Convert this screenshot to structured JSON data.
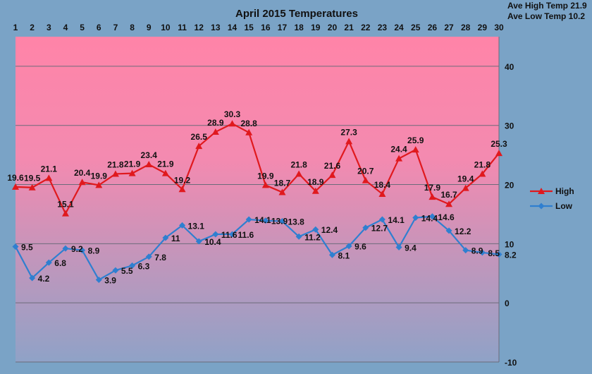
{
  "chart_data": {
    "type": "line",
    "title": "April 2015  Temperatures",
    "stats": [
      "Ave High Temp 21.9",
      "Ave Low Temp 10.2"
    ],
    "x": [
      1,
      2,
      3,
      4,
      5,
      6,
      7,
      8,
      9,
      10,
      11,
      12,
      13,
      14,
      15,
      16,
      17,
      18,
      19,
      20,
      21,
      22,
      23,
      24,
      25,
      26,
      27,
      28,
      29,
      30
    ],
    "x_ticks": [
      "1",
      "2",
      "3",
      "4",
      "5",
      "6",
      "7",
      "8",
      "9",
      "10",
      "11",
      "12",
      "13",
      "14",
      "15",
      "16",
      "17",
      "18",
      "19",
      "20",
      "21",
      "22",
      "23",
      "24",
      "25",
      "26",
      "27",
      "28",
      "29",
      "30"
    ],
    "y_ticks": [
      "-10",
      "0",
      "10",
      "20",
      "30",
      "40"
    ],
    "ylim": [
      -10,
      45
    ],
    "grid": true,
    "legend_position": "right",
    "series": [
      {
        "name": "High",
        "color": "#e0191e",
        "marker": "triangle",
        "values": [
          19.6,
          19.5,
          21.1,
          15.1,
          20.4,
          19.9,
          21.8,
          21.9,
          23.4,
          21.9,
          19.2,
          26.5,
          28.9,
          30.3,
          28.8,
          19.9,
          18.7,
          21.8,
          18.9,
          21.6,
          27.3,
          20.7,
          18.4,
          24.4,
          25.9,
          17.9,
          16.7,
          19.4,
          21.8,
          25.3
        ],
        "labels": [
          "19.6",
          "19.5",
          "21.1",
          "15.1",
          "20.4",
          "19.9",
          "21.8",
          "21.9",
          "23.4",
          "21.9",
          "19.2",
          "26.5",
          "28.9",
          "30.3",
          "28.8",
          "19.9",
          "18.7",
          "21.8",
          "18.9",
          "21.6",
          "27.3",
          "20.7",
          "18.4",
          "24.4",
          "25.9",
          "17.9",
          "16.7",
          "19.4",
          "21.8",
          "25.3"
        ]
      },
      {
        "name": "Low",
        "color": "#2f7fd0",
        "marker": "diamond",
        "values": [
          9.5,
          4.2,
          6.8,
          9.2,
          8.9,
          3.9,
          5.5,
          6.3,
          7.8,
          11,
          13.1,
          10.4,
          11.6,
          11.6,
          14.1,
          13.9,
          13.8,
          11.2,
          12.4,
          8.1,
          9.6,
          12.7,
          14.1,
          9.4,
          14.4,
          14.6,
          12.2,
          8.9,
          8.5,
          8.2
        ],
        "labels": [
          "9.5",
          "4.2",
          "6.8",
          "9.2",
          "8.9",
          "3.9",
          "5.5",
          "6.3",
          "7.8",
          "11",
          "13.1",
          "10.4",
          "11.6",
          "11.6",
          "14.1",
          "13.9",
          "13.8",
          "11.2",
          "12.4",
          "8.1",
          "9.6",
          "12.7",
          "14.1",
          "9.4",
          "14.4",
          "14.6",
          "12.2",
          "8.9",
          "8.5",
          "8.2"
        ]
      }
    ]
  }
}
